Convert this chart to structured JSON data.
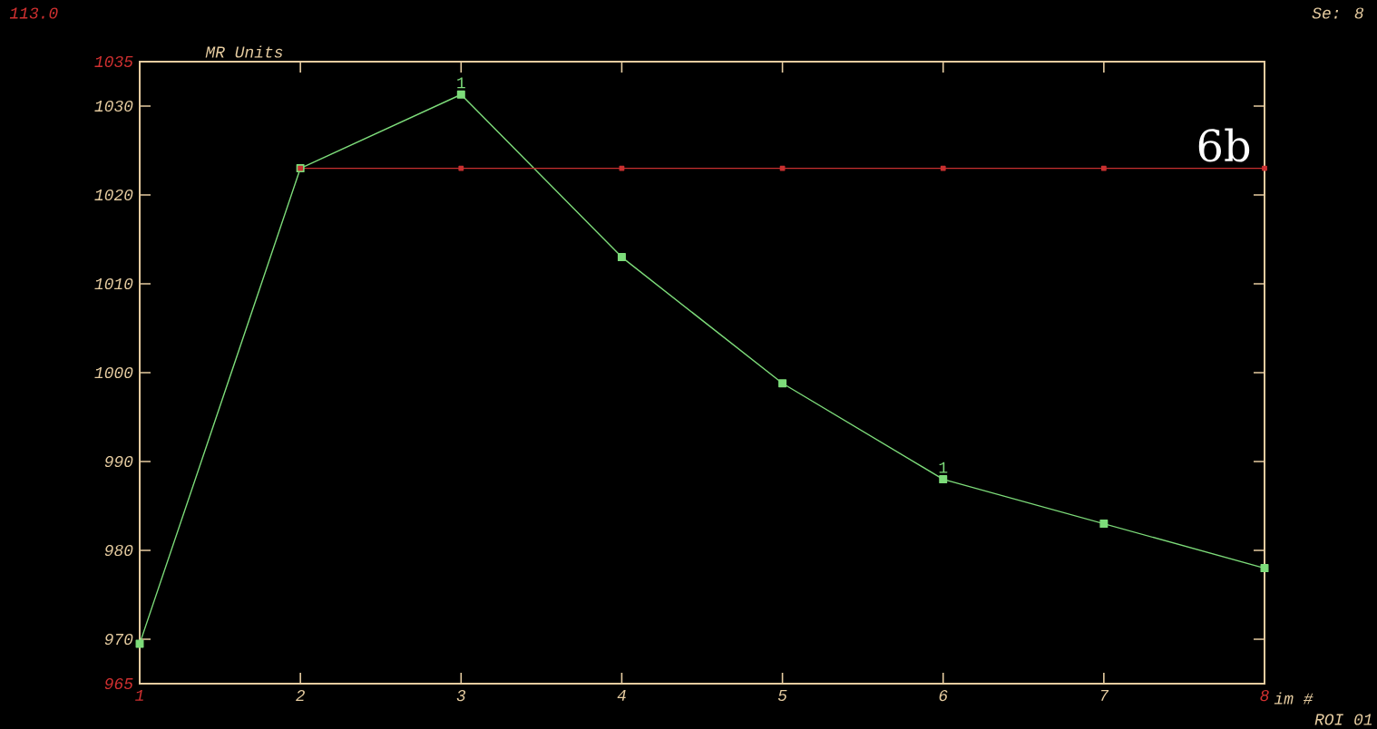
{
  "chart_data": {
    "type": "line",
    "xlabel": "im #",
    "ylabel": "MR Units",
    "x": [
      1,
      2,
      3,
      4,
      5,
      6,
      7,
      8
    ],
    "series": [
      {
        "color": "#7ddc7a",
        "values": [
          969.5,
          1023,
          1031.3,
          1013,
          998.8,
          988,
          983,
          978
        ]
      },
      {
        "color": "#c83030",
        "values": [
          null,
          1023,
          1023,
          1023,
          1023,
          1023,
          1023,
          1023
        ]
      }
    ],
    "xlim": [
      1,
      8
    ],
    "xticks": [
      1,
      2,
      3,
      4,
      5,
      6,
      7,
      8
    ],
    "ylim": [
      965,
      1035
    ],
    "yticks": [
      965,
      970,
      980,
      990,
      1000,
      1010,
      1020,
      1030,
      1035
    ],
    "marker": "square",
    "line_style": "solid",
    "annotations": [
      {
        "text": "1",
        "x": 3,
        "y": 1031.3
      },
      {
        "text": "1",
        "x": 6,
        "y": 988
      },
      "6b",
      "113.0",
      "Se: 8",
      "ROI 01"
    ]
  }
}
